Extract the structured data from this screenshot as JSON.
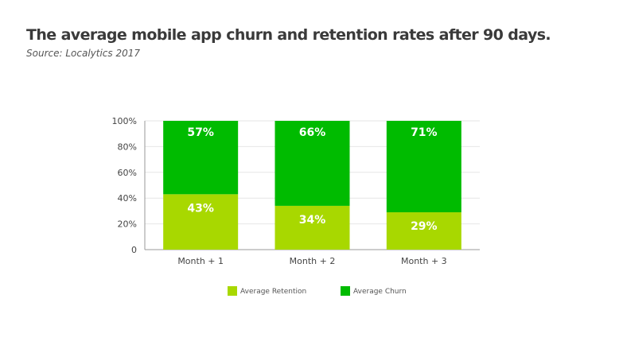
{
  "title": "The average mobile app churn and retention rates after 90 days.",
  "subtitle": "Source: Localytics 2017",
  "chart_data": {
    "type": "bar",
    "stacked": true,
    "categories": [
      "Month + 1",
      "Month + 2",
      "Month + 3"
    ],
    "series": [
      {
        "name": "Average Retention",
        "values": [
          43,
          34,
          29
        ],
        "labels": [
          "43%",
          "34%",
          "29%"
        ],
        "color": "#a8d800"
      },
      {
        "name": "Average Churn",
        "values": [
          57,
          66,
          71
        ],
        "labels": [
          "57%",
          "66%",
          "71%"
        ],
        "color": "#00bb00"
      }
    ],
    "ylim": [
      0,
      100
    ],
    "yticks": [
      0,
      20,
      40,
      60,
      80,
      100
    ],
    "ytick_labels": [
      "0",
      "20%",
      "40%",
      "60%",
      "80%",
      "100%"
    ],
    "grid": true,
    "legend": "bottom"
  }
}
